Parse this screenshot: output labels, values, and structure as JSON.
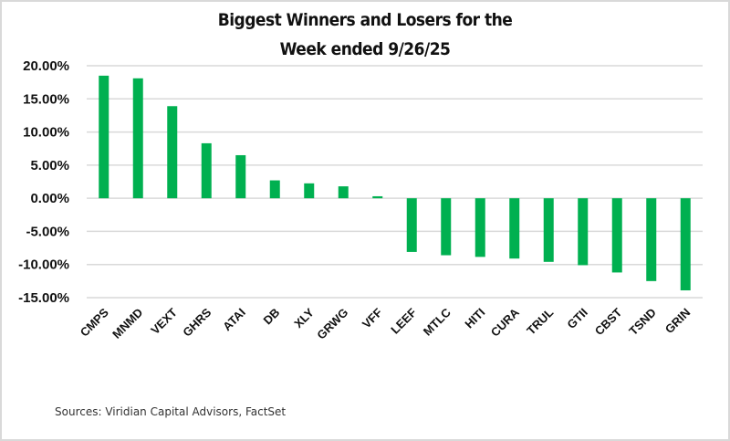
{
  "chart_data": {
    "type": "bar",
    "title": "Biggest Winners and Losers for the Week ended 9/26/25",
    "title_lines": [
      "Biggest Winners and Losers for the",
      "Week ended 9/26/25"
    ],
    "xlabel": "",
    "ylabel": "",
    "categories": [
      "CMPS",
      "MNMD",
      "VEXT",
      "GHRS",
      "ATAI",
      "DB",
      "XLY",
      "GRWG",
      "VFF",
      "LEEF",
      "MTLC",
      "HITI",
      "CURA",
      "TRUL",
      "GTII",
      "CBST",
      "TSND",
      "GRIN"
    ],
    "values": [
      18.5,
      18.1,
      13.9,
      8.3,
      6.5,
      2.7,
      2.25,
      1.8,
      0.3,
      -8.1,
      -8.6,
      -8.85,
      -9.1,
      -9.6,
      -10.1,
      -11.2,
      -12.5,
      -13.9
    ],
    "value_unit": "%",
    "ylim": [
      -15,
      20
    ],
    "yticks": [
      20,
      15,
      10,
      5,
      0,
      -5,
      -10,
      -15
    ],
    "ytick_labels": [
      "20.00%",
      "15.00%",
      "10.00%",
      "5.00%",
      "0.00%",
      "-5.00%",
      "-10.00%",
      "-15.00%"
    ],
    "grid": true,
    "legend": "none",
    "bar_color": "#00b050",
    "gridline_color": "#d9d9d9"
  },
  "footer": {
    "source": "Sources: Viridian Capital Advisors, FactSet"
  }
}
